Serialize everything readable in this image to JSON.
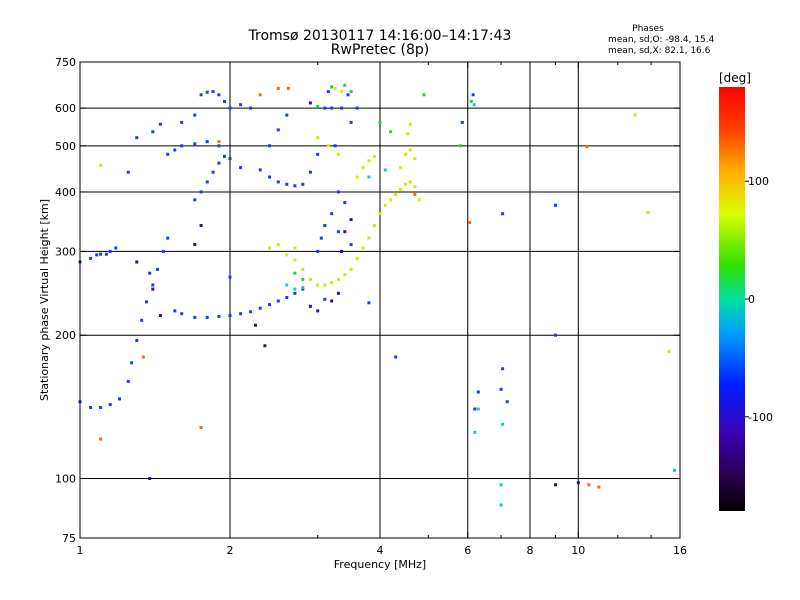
{
  "chart_data": {
    "type": "scatter",
    "title": "Tromsø 20130117 14:16:00–14:17:43",
    "subtitle": "RwPretec (8p)",
    "xlabel": "Frequency [MHz]",
    "ylabel": "Stationary phase Virtual Height [km]",
    "x_scale": "log",
    "y_scale": "log",
    "xlim": [
      1,
      16
    ],
    "ylim": [
      75,
      750
    ],
    "x_ticks": [
      1,
      2,
      4,
      6,
      8,
      10,
      16
    ],
    "x_tick_labels": [
      "1",
      "2",
      "4",
      "6",
      "8",
      "10",
      "16"
    ],
    "x_gridlines": [
      2,
      4,
      6,
      8,
      10
    ],
    "x_minor_ticks": [
      3,
      5,
      7,
      9,
      12,
      14
    ],
    "y_ticks": [
      75,
      100,
      200,
      300,
      400,
      500,
      600,
      750
    ],
    "y_tick_labels": [
      "75",
      "100",
      "200",
      "300",
      "400",
      "500",
      "600",
      "750"
    ],
    "y_gridlines": [
      100,
      200,
      300,
      400,
      500,
      600
    ],
    "grid": true,
    "phase_info": {
      "heading": "Phases",
      "line_o": "mean, sd,O:  -98.4, 15.4",
      "line_x": "mean, sd,X:  82.1, 16.6"
    },
    "colorbar": {
      "title": "[deg]",
      "range": [
        -180,
        180
      ],
      "ticks": [
        -100,
        0,
        100
      ],
      "tick_labels": [
        "-100",
        "0",
        "100"
      ],
      "colormap": "rainbow"
    },
    "series": [
      {
        "points": [
          [
            1.0,
            285
          ],
          [
            1.05,
            290
          ],
          [
            1.08,
            295
          ],
          [
            1.1,
            296
          ],
          [
            1.13,
            296
          ],
          [
            1.15,
            300
          ],
          [
            1.18,
            305
          ],
          [
            1.0,
            145
          ],
          [
            1.05,
            141
          ],
          [
            1.1,
            141
          ],
          [
            1.15,
            143
          ],
          [
            1.2,
            147
          ],
          [
            1.25,
            160
          ],
          [
            1.27,
            175
          ],
          [
            1.3,
            195
          ],
          [
            1.33,
            215
          ],
          [
            1.36,
            235
          ],
          [
            1.4,
            255
          ],
          [
            1.43,
            275
          ],
          [
            1.47,
            300
          ],
          [
            1.5,
            320
          ],
          [
            1.55,
            225
          ],
          [
            1.6,
            222
          ],
          [
            1.7,
            218
          ],
          [
            1.8,
            218
          ],
          [
            1.9,
            219
          ],
          [
            2.0,
            220
          ],
          [
            2.1,
            222
          ],
          [
            2.2,
            224
          ],
          [
            2.3,
            228
          ],
          [
            2.4,
            232
          ],
          [
            2.5,
            236
          ],
          [
            2.6,
            240
          ],
          [
            2.7,
            245
          ],
          [
            2.8,
            250
          ],
          [
            1.5,
            480
          ],
          [
            1.55,
            490
          ],
          [
            1.6,
            500
          ],
          [
            1.7,
            505
          ],
          [
            1.8,
            510
          ],
          [
            1.9,
            500
          ],
          [
            2.0,
            470
          ],
          [
            2.1,
            450
          ],
          [
            1.3,
            520
          ],
          [
            1.4,
            535
          ],
          [
            1.45,
            555
          ],
          [
            1.7,
            385
          ],
          [
            1.75,
            400
          ],
          [
            1.8,
            420
          ],
          [
            1.85,
            440
          ],
          [
            1.9,
            460
          ],
          [
            1.95,
            475
          ],
          [
            1.6,
            560
          ],
          [
            1.7,
            580
          ],
          [
            1.75,
            640
          ],
          [
            1.8,
            648
          ],
          [
            1.85,
            650
          ],
          [
            1.9,
            640
          ],
          [
            1.95,
            620
          ],
          [
            2.0,
            600
          ],
          [
            2.1,
            610
          ],
          [
            2.2,
            600
          ],
          [
            2.3,
            445
          ],
          [
            2.4,
            430
          ],
          [
            2.5,
            420
          ],
          [
            2.6,
            415
          ],
          [
            2.7,
            412
          ],
          [
            2.8,
            415
          ],
          [
            2.9,
            440
          ],
          [
            2.4,
            500
          ],
          [
            2.5,
            540
          ],
          [
            2.6,
            580
          ],
          [
            3.0,
            480
          ],
          [
            3.1,
            600
          ],
          [
            3.15,
            650
          ],
          [
            3.2,
            600
          ],
          [
            3.25,
            500
          ],
          [
            3.3,
            400
          ],
          [
            3.0,
            300
          ],
          [
            3.05,
            320
          ],
          [
            3.1,
            340
          ],
          [
            3.2,
            360
          ],
          [
            3.3,
            330
          ],
          [
            3.4,
            380
          ],
          [
            3.5,
            310
          ],
          [
            3.35,
            600
          ],
          [
            3.45,
            640
          ],
          [
            3.5,
            560
          ],
          [
            3.6,
            600
          ],
          [
            1.25,
            440
          ],
          [
            1.38,
            270
          ],
          [
            2.0,
            265
          ],
          [
            3.1,
            238
          ],
          [
            3.8,
            234
          ],
          [
            4.3,
            180
          ],
          [
            6.2,
            140
          ],
          [
            6.3,
            152
          ],
          [
            7.05,
            170
          ],
          [
            7.0,
            154
          ],
          [
            7.2,
            145
          ],
          [
            9.0,
            375
          ],
          [
            9.0,
            200
          ],
          [
            7.05,
            360
          ],
          [
            6.15,
            640
          ],
          [
            5.85,
            560
          ]
        ],
        "color": "#1a3bf0"
      },
      {
        "points": [
          [
            2.6,
            295
          ],
          [
            2.7,
            288
          ],
          [
            2.8,
            275
          ],
          [
            2.9,
            262
          ],
          [
            3.0,
            255
          ],
          [
            3.1,
            255
          ],
          [
            3.2,
            258
          ],
          [
            3.3,
            262
          ],
          [
            3.4,
            268
          ],
          [
            3.5,
            275
          ],
          [
            3.6,
            290
          ],
          [
            3.7,
            305
          ],
          [
            3.8,
            320
          ],
          [
            3.9,
            340
          ],
          [
            4.0,
            360
          ],
          [
            4.1,
            375
          ],
          [
            4.2,
            385
          ],
          [
            4.3,
            395
          ],
          [
            4.4,
            405
          ],
          [
            4.5,
            415
          ],
          [
            4.6,
            420
          ],
          [
            4.7,
            410
          ],
          [
            4.8,
            385
          ],
          [
            4.4,
            450
          ],
          [
            4.5,
            480
          ],
          [
            4.6,
            490
          ],
          [
            4.7,
            470
          ],
          [
            3.6,
            430
          ],
          [
            3.7,
            450
          ],
          [
            3.8,
            465
          ],
          [
            3.9,
            475
          ],
          [
            3.0,
            520
          ],
          [
            3.15,
            500
          ],
          [
            3.3,
            480
          ],
          [
            3.25,
            660
          ],
          [
            3.35,
            650
          ],
          [
            4.55,
            530
          ],
          [
            4.6,
            555
          ],
          [
            2.7,
            305
          ],
          [
            2.5,
            310
          ],
          [
            2.4,
            305
          ],
          [
            1.1,
            455
          ],
          [
            13.0,
            580
          ],
          [
            13.8,
            362
          ],
          [
            15.2,
            185
          ]
        ],
        "color": "#d8e800"
      },
      {
        "points": [
          [
            2.7,
            270
          ],
          [
            2.8,
            262
          ],
          [
            3.0,
            605
          ],
          [
            3.2,
            665
          ],
          [
            3.4,
            670
          ],
          [
            3.5,
            650
          ],
          [
            4.0,
            560
          ],
          [
            4.2,
            535
          ],
          [
            4.9,
            640
          ],
          [
            5.8,
            500
          ],
          [
            6.1,
            620
          ]
        ],
        "color": "#20d040"
      },
      {
        "points": [
          [
            2.6,
            255
          ],
          [
            2.7,
            250
          ],
          [
            2.8,
            252
          ],
          [
            6.2,
            125
          ],
          [
            6.3,
            140
          ],
          [
            7.0,
            97
          ],
          [
            7.0,
            88
          ],
          [
            7.05,
            130
          ],
          [
            6.18,
            610
          ],
          [
            15.6,
            104
          ],
          [
            4.1,
            445
          ],
          [
            3.8,
            430
          ]
        ],
        "color": "#20c0e0"
      },
      {
        "points": [
          [
            1.3,
            285
          ],
          [
            1.4,
            250
          ],
          [
            1.45,
            220
          ],
          [
            2.25,
            210
          ],
          [
            2.35,
            190
          ],
          [
            2.9,
            230
          ],
          [
            3.0,
            225
          ],
          [
            3.2,
            236
          ],
          [
            3.3,
            245
          ],
          [
            3.35,
            300
          ],
          [
            3.4,
            330
          ],
          [
            3.5,
            350
          ],
          [
            1.7,
            310
          ],
          [
            1.75,
            340
          ],
          [
            1.38,
            100
          ],
          [
            10.0,
            98
          ],
          [
            9.0,
            97
          ],
          [
            2.9,
            615
          ]
        ],
        "color": "#30108a"
      },
      {
        "points": [
          [
            1.1,
            121
          ],
          [
            1.34,
            180
          ],
          [
            1.75,
            128
          ],
          [
            1.9,
            510
          ],
          [
            2.3,
            640
          ],
          [
            2.5,
            660
          ],
          [
            2.62,
            660
          ],
          [
            4.7,
            395
          ],
          [
            10.4,
            498
          ],
          [
            10.5,
            97
          ],
          [
            11.0,
            96
          ],
          [
            6.05,
            345
          ]
        ],
        "color": "#f07000"
      }
    ]
  }
}
